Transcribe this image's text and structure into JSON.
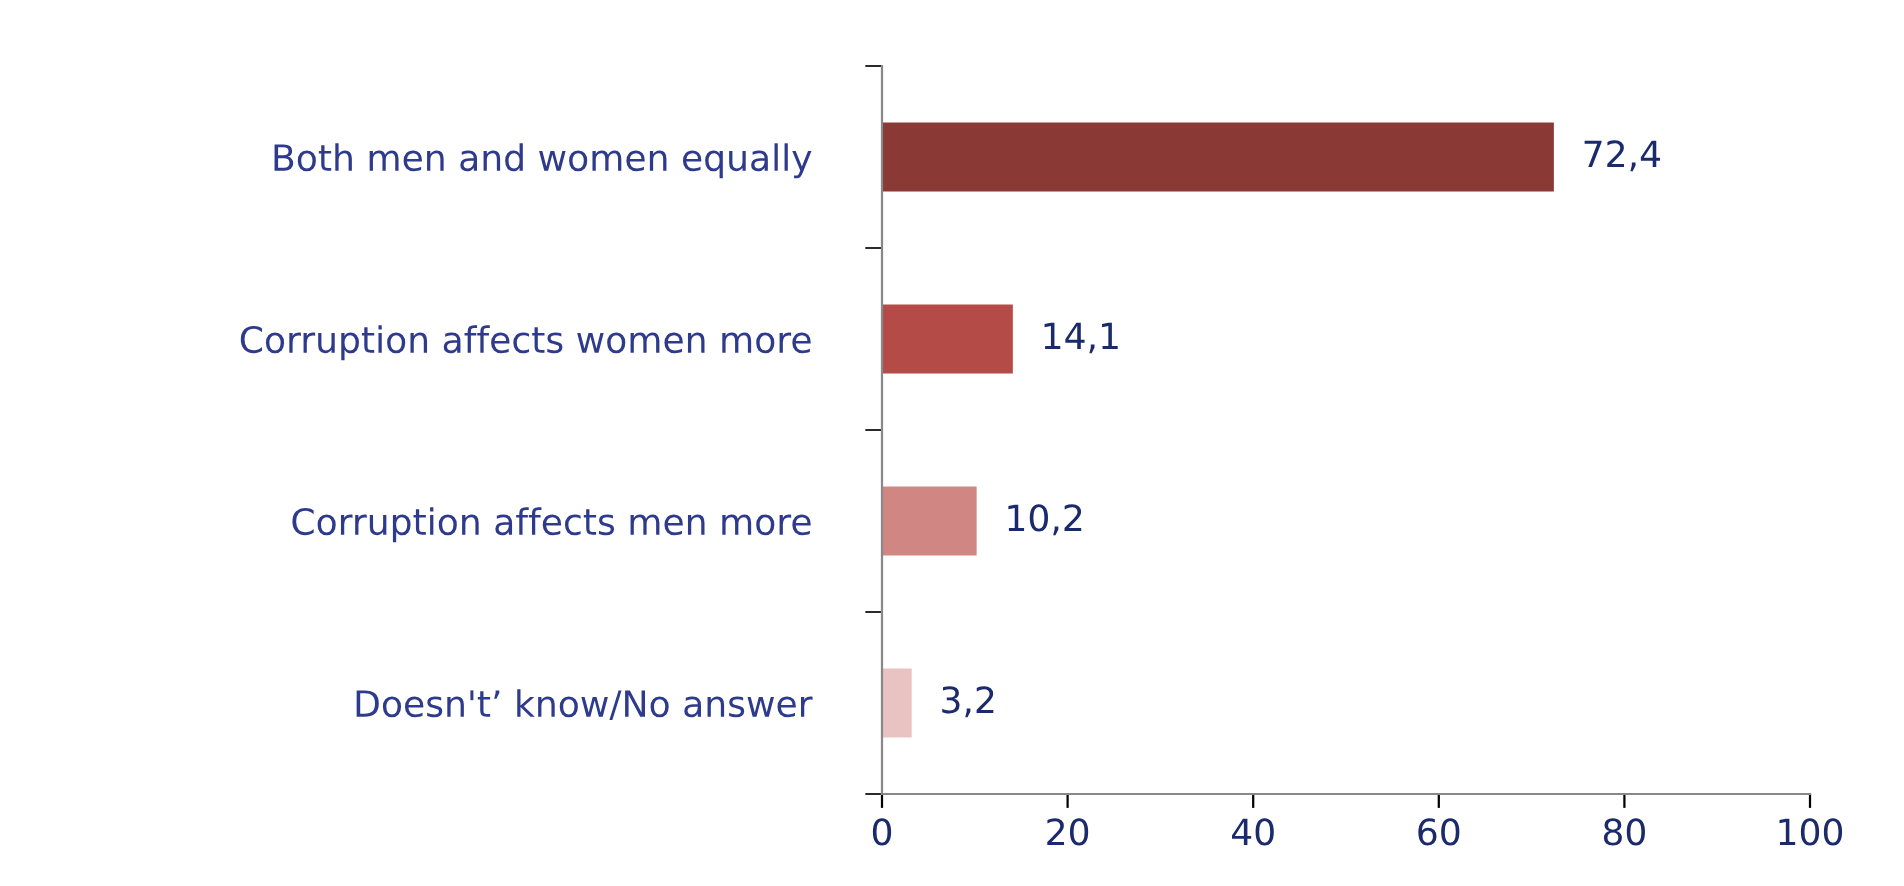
{
  "chart_data": {
    "type": "bar",
    "orientation": "horizontal",
    "categories": [
      "Both men and women equally",
      "Corruption affects women more",
      "Corruption affects men more",
      "Doesn't’ know/No answer"
    ],
    "values": [
      72.4,
      14.1,
      10.2,
      3.2
    ],
    "colors": [
      "#8b3934",
      "#b54b47",
      "#d08783",
      "#e9c3c2"
    ],
    "value_labels": [
      "72,4",
      "14,1",
      "10,2",
      "3,2"
    ],
    "xlim": [
      0,
      100
    ],
    "xticks": [
      0,
      20,
      40,
      60,
      80,
      100
    ],
    "grid": false,
    "legend": false
  }
}
